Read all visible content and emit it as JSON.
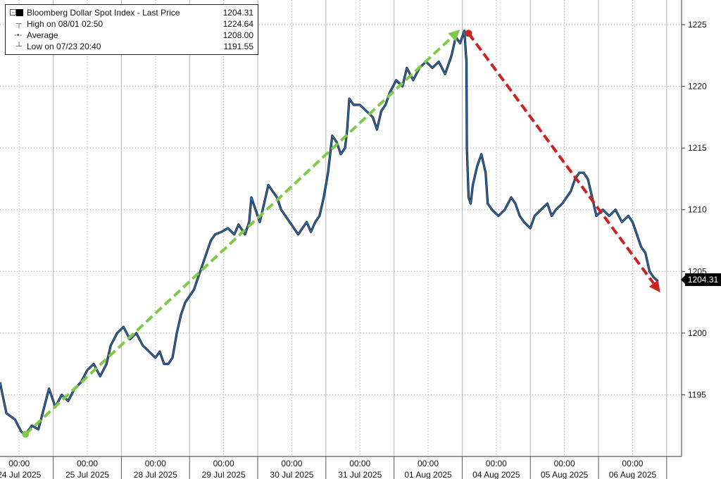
{
  "legend": {
    "title": "Bloomberg Dollar Spot Index - Last Price",
    "title_value": "1204.31",
    "high_label": "High on 08/01 02:50",
    "high_value": "1224.64",
    "avg_label": "Average",
    "avg_value": "1208.00",
    "low_label": "Low on 07/23 20:40",
    "low_value": "1191.55"
  },
  "last_price_label": "1204.31",
  "chart_data": {
    "type": "line",
    "title": "",
    "xlabel": "",
    "ylabel": "",
    "ylim": [
      1190,
      1227
    ],
    "y_ticks": [
      1195,
      1200,
      1205,
      1210,
      1215,
      1220,
      1225
    ],
    "y_axis_position": "right",
    "grid": "dotted",
    "legend_position": "top-left",
    "x_ticks": [
      {
        "time": "00:00",
        "date": "24 Jul 2025"
      },
      {
        "time": "00:00",
        "date": "25 Jul 2025"
      },
      {
        "time": "00:00",
        "date": "28 Jul 2025"
      },
      {
        "time": "00:00",
        "date": "29 Jul 2025"
      },
      {
        "time": "00:00",
        "date": "30 Jul 2025"
      },
      {
        "time": "00:00",
        "date": "31 Jul 2025"
      },
      {
        "time": "00:00",
        "date": "01 Aug 2025"
      },
      {
        "time": "00:00",
        "date": "04 Aug 2025"
      },
      {
        "time": "00:00",
        "date": "05 Aug 2025"
      },
      {
        "time": "00:00",
        "date": "06 Aug 2025"
      }
    ],
    "series": [
      {
        "values": [
          [
            0.0,
            1196.0
          ],
          [
            0.15,
            1193.5
          ],
          [
            0.35,
            1193.0
          ],
          [
            0.5,
            1192.0
          ],
          [
            0.6,
            1191.8
          ],
          [
            0.75,
            1192.5
          ],
          [
            0.9,
            1192.2
          ],
          [
            1.0,
            1193.5
          ],
          [
            1.15,
            1195.5
          ],
          [
            1.3,
            1194.0
          ],
          [
            1.45,
            1195.0
          ],
          [
            1.6,
            1194.5
          ],
          [
            1.75,
            1195.5
          ],
          [
            1.9,
            1196.0
          ],
          [
            2.05,
            1197.0
          ],
          [
            2.2,
            1197.5
          ],
          [
            2.35,
            1196.5
          ],
          [
            2.5,
            1197.5
          ],
          [
            2.6,
            1199.0
          ],
          [
            2.75,
            1200.0
          ],
          [
            2.9,
            1200.5
          ],
          [
            3.05,
            1199.5
          ],
          [
            3.2,
            1200.0
          ],
          [
            3.35,
            1199.0
          ],
          [
            3.5,
            1198.5
          ],
          [
            3.65,
            1198.0
          ],
          [
            3.75,
            1198.5
          ],
          [
            3.85,
            1197.5
          ],
          [
            3.95,
            1197.5
          ],
          [
            4.05,
            1198.0
          ],
          [
            4.15,
            1200.0
          ],
          [
            4.25,
            1201.5
          ],
          [
            4.35,
            1202.5
          ],
          [
            4.45,
            1203.0
          ],
          [
            4.55,
            1203.5
          ],
          [
            4.65,
            1204.5
          ],
          [
            4.75,
            1205.5
          ],
          [
            4.85,
            1206.5
          ],
          [
            4.95,
            1207.5
          ],
          [
            5.05,
            1208.0
          ],
          [
            5.2,
            1208.2
          ],
          [
            5.35,
            1208.5
          ],
          [
            5.5,
            1208.0
          ],
          [
            5.6,
            1208.8
          ],
          [
            5.75,
            1208.0
          ],
          [
            5.85,
            1209.0
          ],
          [
            5.9,
            1211.0
          ],
          [
            6.0,
            1210.0
          ],
          [
            6.1,
            1209.0
          ],
          [
            6.2,
            1210.5
          ],
          [
            6.3,
            1212.0
          ],
          [
            6.4,
            1211.5
          ],
          [
            6.5,
            1211.0
          ],
          [
            6.6,
            1210.0
          ],
          [
            6.7,
            1209.5
          ],
          [
            6.8,
            1209.0
          ],
          [
            6.9,
            1208.5
          ],
          [
            7.0,
            1208.0
          ],
          [
            7.1,
            1208.5
          ],
          [
            7.2,
            1209.0
          ],
          [
            7.3,
            1208.2
          ],
          [
            7.4,
            1209.0
          ],
          [
            7.5,
            1209.5
          ],
          [
            7.6,
            1211.0
          ],
          [
            7.7,
            1213.0
          ],
          [
            7.8,
            1216.0
          ],
          [
            7.9,
            1215.5
          ],
          [
            8.0,
            1214.5
          ],
          [
            8.1,
            1215.0
          ],
          [
            8.15,
            1216.5
          ],
          [
            8.2,
            1219.0
          ],
          [
            8.3,
            1218.5
          ],
          [
            8.45,
            1218.5
          ],
          [
            8.6,
            1218.0
          ],
          [
            8.75,
            1217.5
          ],
          [
            8.85,
            1216.5
          ],
          [
            8.95,
            1218.0
          ],
          [
            9.05,
            1218.5
          ],
          [
            9.15,
            1219.5
          ],
          [
            9.3,
            1220.5
          ],
          [
            9.45,
            1220.0
          ],
          [
            9.55,
            1221.5
          ],
          [
            9.7,
            1220.5
          ],
          [
            9.85,
            1221.5
          ],
          [
            10.0,
            1222.0
          ],
          [
            10.15,
            1221.5
          ],
          [
            10.3,
            1222.0
          ],
          [
            10.45,
            1221.0
          ],
          [
            10.6,
            1222.5
          ],
          [
            10.7,
            1224.0
          ],
          [
            10.8,
            1223.5
          ],
          [
            10.9,
            1224.5
          ],
          [
            10.95,
            1222.0
          ],
          [
            10.96,
            1215.0
          ],
          [
            11.0,
            1211.0
          ],
          [
            11.05,
            1210.5
          ],
          [
            11.1,
            1212.0
          ],
          [
            11.2,
            1213.5
          ],
          [
            11.3,
            1214.5
          ],
          [
            11.4,
            1213.0
          ],
          [
            11.45,
            1210.5
          ],
          [
            11.55,
            1210.0
          ],
          [
            11.7,
            1209.5
          ],
          [
            11.85,
            1210.0
          ],
          [
            12.0,
            1211.0
          ],
          [
            12.1,
            1210.5
          ],
          [
            12.2,
            1209.5
          ],
          [
            12.3,
            1209.0
          ],
          [
            12.45,
            1208.5
          ],
          [
            12.55,
            1209.5
          ],
          [
            12.7,
            1210.0
          ],
          [
            12.85,
            1210.5
          ],
          [
            12.95,
            1209.5
          ],
          [
            13.05,
            1210.0
          ],
          [
            13.2,
            1210.5
          ],
          [
            13.3,
            1211.0
          ],
          [
            13.4,
            1211.5
          ],
          [
            13.5,
            1212.5
          ],
          [
            13.6,
            1213.0
          ],
          [
            13.7,
            1213.0
          ],
          [
            13.8,
            1212.5
          ],
          [
            13.9,
            1211.0
          ],
          [
            14.0,
            1209.5
          ],
          [
            14.15,
            1210.0
          ],
          [
            14.3,
            1209.5
          ],
          [
            14.45,
            1210.0
          ],
          [
            14.6,
            1209.0
          ],
          [
            14.75,
            1209.5
          ],
          [
            14.85,
            1209.0
          ],
          [
            14.95,
            1208.0
          ],
          [
            15.05,
            1207.0
          ],
          [
            15.15,
            1206.5
          ],
          [
            15.25,
            1205.0
          ],
          [
            15.35,
            1204.5
          ],
          [
            15.45,
            1204.2
          ]
        ]
      }
    ],
    "annotations": [
      {
        "type": "arrow",
        "color": "#7fc84a",
        "from": [
          0.6,
          1191.8
        ],
        "to": [
          10.8,
          1224.6
        ]
      },
      {
        "type": "arrow",
        "color": "#cc2222",
        "from": [
          11.0,
          1224.3
        ],
        "to": [
          15.5,
          1203.3
        ]
      }
    ]
  },
  "colors": {
    "line_outer": "#111111",
    "line_inner": "#2f7fd6",
    "up_arrow": "#7fc84a",
    "down_arrow": "#cc2222",
    "grid": "#9a9a9a"
  }
}
